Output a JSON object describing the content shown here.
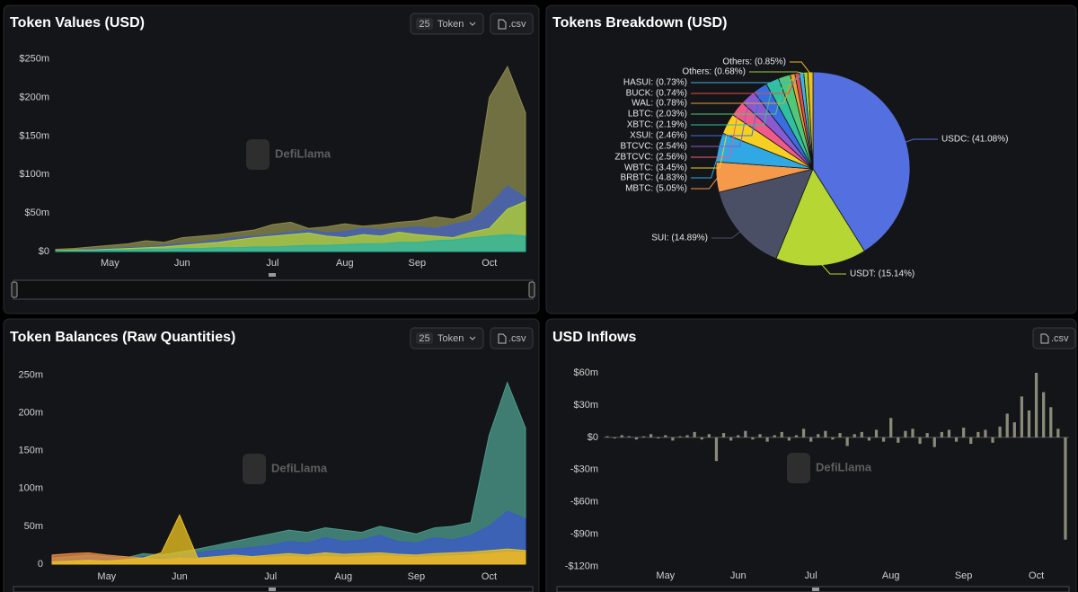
{
  "chart_data": [
    {
      "type": "area",
      "title": "Token Values (USD)",
      "token_filter": {
        "count": 25,
        "label": "Token"
      },
      "export": ".csv",
      "watermark": "DefiLlama",
      "categories": [
        null,
        null,
        null,
        "May",
        null,
        null,
        null,
        "Jun",
        null,
        null,
        null,
        null,
        "Jul",
        null,
        null,
        null,
        "Aug",
        null,
        null,
        null,
        "Sep",
        null,
        null,
        null,
        "Oct",
        null,
        null
      ],
      "ylim": [
        0,
        260
      ],
      "yticks": [
        {
          "value": 0,
          "label": "$0"
        },
        {
          "value": 50,
          "label": "$50m"
        },
        {
          "value": 100,
          "label": "$100m"
        },
        {
          "value": 150,
          "label": "$150m"
        },
        {
          "value": 200,
          "label": "$200m"
        },
        {
          "value": 250,
          "label": "$250m"
        }
      ],
      "series": [
        {
          "color": "#8c8a4e",
          "values": [
            3,
            4,
            6,
            8,
            10,
            14,
            12,
            18,
            20,
            22,
            25,
            28,
            35,
            38,
            30,
            32,
            36,
            33,
            35,
            38,
            40,
            45,
            42,
            50,
            200,
            240,
            180
          ]
        },
        {
          "color": "#4060c0",
          "values": [
            1,
            2,
            3,
            4,
            5,
            6,
            8,
            10,
            12,
            15,
            18,
            20,
            22,
            25,
            28,
            24,
            26,
            30,
            28,
            30,
            32,
            30,
            35,
            40,
            60,
            85,
            70
          ]
        },
        {
          "color": "#b5d12f",
          "values": [
            1,
            2,
            2,
            3,
            4,
            5,
            6,
            8,
            10,
            12,
            15,
            18,
            20,
            22,
            24,
            20,
            18,
            22,
            20,
            25,
            22,
            20,
            18,
            25,
            30,
            55,
            65
          ]
        },
        {
          "color": "#2bb3a0",
          "values": [
            0.5,
            1,
            1,
            2,
            2,
            3,
            3,
            4,
            4,
            5,
            5,
            6,
            6,
            7,
            8,
            8,
            9,
            10,
            10,
            12,
            12,
            14,
            15,
            18,
            20,
            22,
            20
          ]
        }
      ]
    },
    {
      "type": "pie",
      "title": "Tokens Breakdown (USD)",
      "watermark": "DefiLlama",
      "categories": [
        "USDC: (41.08%)",
        "USDT: (15.14%)",
        "SUI: (14.89%)",
        "MBTC: (5.05%)",
        "BRBTC: (4.83%)",
        "WBTC: (3.45%)",
        "ZBTCVC: (2.56%)",
        "BTCVC: (2.54%)",
        "XSUI: (2.46%)",
        "XBTC: (2.19%)",
        "LBTC: (2.03%)",
        "WAL: (0.78%)",
        "BUCK: (0.74%)",
        "HASUI: (0.73%)",
        "Others: (0.68%)",
        "Others: (0.85%)"
      ],
      "values": [
        41.08,
        15.14,
        14.89,
        5.05,
        4.83,
        3.45,
        2.56,
        2.54,
        2.46,
        2.19,
        2.03,
        0.78,
        0.74,
        0.73,
        0.68,
        0.85
      ],
      "colors": [
        "#5470e0",
        "#b5d633",
        "#4a4f66",
        "#f5994a",
        "#2fa8e4",
        "#f5d020",
        "#f05a8a",
        "#8a5ad0",
        "#3a6ee0",
        "#30c0a0",
        "#50c878",
        "#e8a030",
        "#e05050",
        "#40b0e0",
        "#a0d040",
        "#f0c020"
      ]
    },
    {
      "type": "area",
      "title": "Token Balances (Raw Quantities)",
      "token_filter": {
        "count": 25,
        "label": "Token"
      },
      "export": ".csv",
      "watermark": "DefiLlama",
      "categories": [
        null,
        null,
        null,
        "May",
        null,
        null,
        null,
        "Jun",
        null,
        null,
        null,
        null,
        "Jul",
        null,
        null,
        null,
        "Aug",
        null,
        null,
        null,
        "Sep",
        null,
        null,
        null,
        "Oct",
        null,
        null
      ],
      "ylim": [
        0,
        260
      ],
      "yticks": [
        0,
        {
          "value": 50,
          "label": "50m"
        },
        {
          "value": 100,
          "label": "100m"
        },
        {
          "value": 150,
          "label": "150m"
        },
        {
          "value": 200,
          "label": "200m"
        },
        {
          "value": 250,
          "label": "250m"
        }
      ],
      "series": [
        {
          "color": "#4b9a8c",
          "values": [
            8,
            10,
            12,
            10,
            8,
            14,
            12,
            16,
            20,
            25,
            30,
            35,
            40,
            45,
            42,
            48,
            45,
            42,
            50,
            45,
            40,
            48,
            50,
            55,
            170,
            240,
            180
          ]
        },
        {
          "color": "#3a5bc8",
          "values": [
            5,
            6,
            8,
            7,
            6,
            10,
            9,
            12,
            15,
            18,
            20,
            22,
            25,
            30,
            28,
            35,
            30,
            32,
            38,
            30,
            28,
            35,
            32,
            38,
            50,
            70,
            60
          ]
        },
        {
          "color": "#e88a40",
          "values": [
            12,
            14,
            15,
            12,
            10,
            8,
            6,
            8,
            7,
            8,
            9,
            8,
            9,
            10,
            9,
            10,
            9,
            10,
            11,
            10,
            9,
            10,
            11,
            12,
            14,
            16,
            15
          ]
        },
        {
          "color": "#e8c020",
          "values": [
            3,
            4,
            5,
            4,
            6,
            8,
            15,
            65,
            8,
            10,
            12,
            10,
            12,
            14,
            12,
            15,
            13,
            14,
            15,
            13,
            12,
            14,
            15,
            16,
            18,
            20,
            18
          ]
        }
      ]
    },
    {
      "type": "bar",
      "title": "USD Inflows",
      "export": ".csv",
      "watermark": "DefiLlama",
      "color": "#8a8a78",
      "categories": [
        null,
        null,
        null,
        null,
        null,
        null,
        null,
        null,
        "May",
        null,
        null,
        null,
        null,
        null,
        null,
        null,
        null,
        null,
        "Jun",
        null,
        null,
        null,
        null,
        null,
        null,
        null,
        null,
        null,
        "Jul",
        null,
        null,
        null,
        null,
        null,
        null,
        null,
        null,
        null,
        null,
        "Aug",
        null,
        null,
        null,
        null,
        null,
        null,
        null,
        null,
        null,
        "Sep",
        null,
        null,
        null,
        null,
        null,
        null,
        null,
        null,
        null,
        "Oct",
        null,
        null,
        null,
        null
      ],
      "values": [
        1,
        -1,
        2,
        1,
        -2,
        1,
        3,
        -1,
        2,
        -3,
        1,
        2,
        5,
        -2,
        3,
        -22,
        4,
        -3,
        2,
        6,
        -2,
        3,
        -4,
        2,
        5,
        -3,
        2,
        8,
        -4,
        3,
        6,
        -2,
        4,
        -8,
        3,
        5,
        -3,
        7,
        -4,
        18,
        -5,
        6,
        8,
        -6,
        4,
        -9,
        5,
        7,
        -4,
        9,
        -6,
        5,
        7,
        -5,
        10,
        22,
        14,
        38,
        25,
        60,
        42,
        28,
        8,
        -95
      ],
      "ylim": [
        -122,
        70
      ],
      "yticks": [
        {
          "value": 60,
          "label": "$60m"
        },
        {
          "value": 30,
          "label": "$30m"
        },
        {
          "value": 0,
          "label": "$0"
        },
        {
          "value": -30,
          "label": "-$30m"
        },
        {
          "value": -60,
          "label": "-$60m"
        },
        {
          "value": -90,
          "label": "-$90m"
        },
        {
          "value": -120,
          "label": "-$120m"
        }
      ]
    }
  ]
}
